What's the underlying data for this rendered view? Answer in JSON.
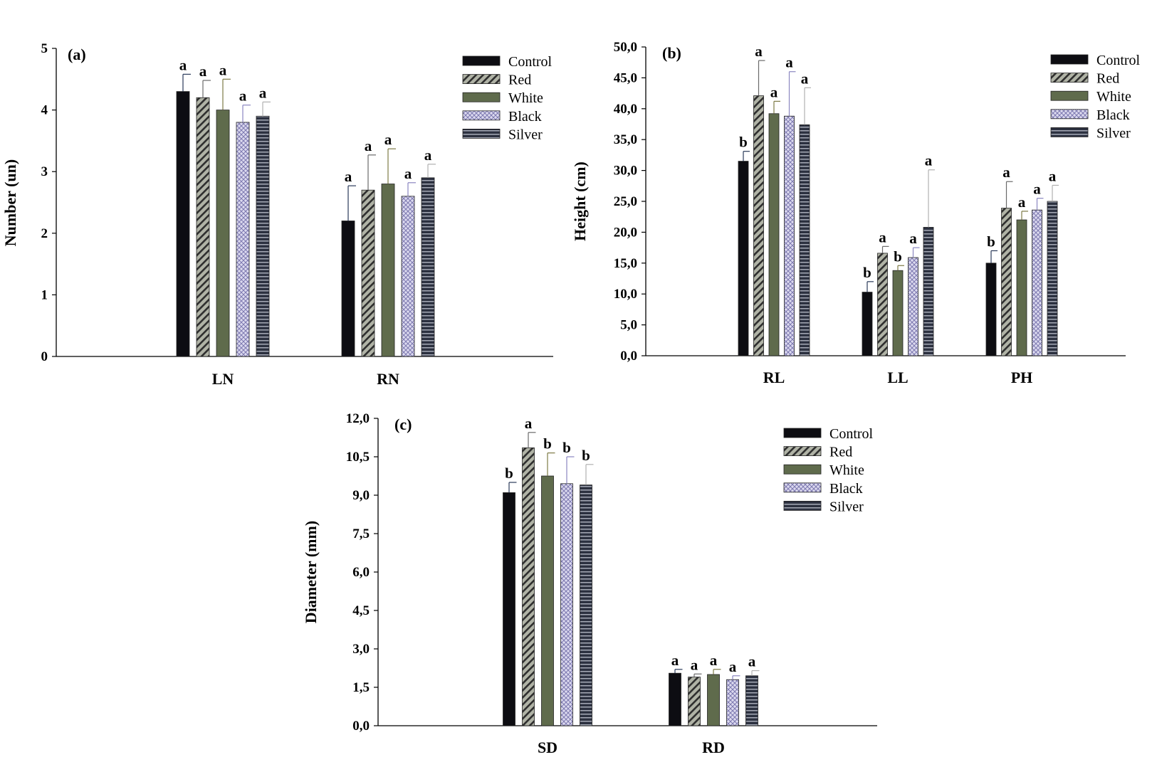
{
  "legend": {
    "entries": [
      "Control",
      "Red",
      "White",
      "Black",
      "Silver"
    ]
  },
  "series_styles": [
    {
      "name": "Control",
      "fill": "#0d0d12",
      "pattern": "solid"
    },
    {
      "name": "Red",
      "fill": "#b0b3a6",
      "pattern": "diagonal-hatch",
      "stroke": "#2e2e2e"
    },
    {
      "name": "White",
      "fill": "#5f6b4c",
      "pattern": "solid"
    },
    {
      "name": "Black",
      "fill": "#d8d5ec",
      "pattern": "crosshatch",
      "stroke": "#7c78b0"
    },
    {
      "name": "Silver",
      "fill": "#2c3140",
      "pattern": "horizontal-lines",
      "stroke": "#c4c8d4"
    }
  ],
  "chart_data": [
    {
      "type": "bar",
      "panel_label": "(a)",
      "ylabel": "Number (un)",
      "ylim": [
        0,
        5
      ],
      "yticks": [
        "0",
        "1",
        "2",
        "3",
        "4",
        "5"
      ],
      "categories": [
        "LN",
        "RN"
      ],
      "series": [
        {
          "name": "Control",
          "values": [
            4.3,
            2.2
          ],
          "errors": [
            0.28,
            0.57
          ],
          "letters": [
            "a",
            "a"
          ]
        },
        {
          "name": "Red",
          "values": [
            4.2,
            2.7
          ],
          "errors": [
            0.28,
            0.57
          ],
          "letters": [
            "a",
            "a"
          ]
        },
        {
          "name": "White",
          "values": [
            4.0,
            2.8
          ],
          "errors": [
            0.5,
            0.57
          ],
          "letters": [
            "a",
            "a"
          ]
        },
        {
          "name": "Black",
          "values": [
            3.8,
            2.6
          ],
          "errors": [
            0.28,
            0.22
          ],
          "letters": [
            "a",
            "a"
          ]
        },
        {
          "name": "Silver",
          "values": [
            3.9,
            2.9
          ],
          "errors": [
            0.23,
            0.22
          ],
          "letters": [
            "a",
            "a"
          ]
        }
      ],
      "legend_position": "top-right",
      "grid": false
    },
    {
      "type": "bar",
      "panel_label": "(b)",
      "ylabel": "Height (cm)",
      "ylim": [
        0,
        50
      ],
      "yticks": [
        "0,0",
        "5,0",
        "10,0",
        "15,0",
        "20,0",
        "25,0",
        "30,0",
        "35,0",
        "40,0",
        "45,0",
        "50,0"
      ],
      "categories": [
        "RL",
        "LL",
        "PH"
      ],
      "series": [
        {
          "name": "Control",
          "values": [
            31.5,
            10.3,
            15.0
          ],
          "errors": [
            1.6,
            1.7,
            2.0
          ],
          "letters": [
            "b",
            "b",
            "b"
          ]
        },
        {
          "name": "Red",
          "values": [
            42.1,
            16.6,
            23.9
          ],
          "errors": [
            5.7,
            1.1,
            4.3
          ],
          "letters": [
            "a",
            "a",
            "a"
          ]
        },
        {
          "name": "White",
          "values": [
            39.2,
            13.8,
            22.0
          ],
          "errors": [
            2.0,
            0.8,
            1.4
          ],
          "letters": [
            "a",
            "b",
            "a"
          ]
        },
        {
          "name": "Black",
          "values": [
            38.8,
            15.9,
            23.6
          ],
          "errors": [
            7.2,
            1.6,
            1.9
          ],
          "letters": [
            "a",
            "a",
            "a"
          ]
        },
        {
          "name": "Silver",
          "values": [
            37.4,
            20.8,
            25.0
          ],
          "errors": [
            6.0,
            9.3,
            2.6
          ],
          "letters": [
            "a",
            "a",
            "a"
          ]
        }
      ],
      "legend_position": "top-right",
      "grid": false
    },
    {
      "type": "bar",
      "panel_label": "(c)",
      "ylabel": "Diameter (mm)",
      "ylim": [
        0,
        12
      ],
      "yticks": [
        "0,0",
        "1,5",
        "3,0",
        "4,5",
        "6,0",
        "7,5",
        "9,0",
        "10,5",
        "12,0"
      ],
      "categories": [
        "SD",
        "RD"
      ],
      "series": [
        {
          "name": "Control",
          "values": [
            9.1,
            2.05
          ],
          "errors": [
            0.4,
            0.15
          ],
          "letters": [
            "b",
            "a"
          ]
        },
        {
          "name": "Red",
          "values": [
            10.85,
            1.9
          ],
          "errors": [
            0.6,
            0.12
          ],
          "letters": [
            "a",
            "a"
          ]
        },
        {
          "name": "White",
          "values": [
            9.75,
            2.0
          ],
          "errors": [
            0.9,
            0.2
          ],
          "letters": [
            "b",
            "a"
          ]
        },
        {
          "name": "Black",
          "values": [
            9.45,
            1.8
          ],
          "errors": [
            1.05,
            0.15
          ],
          "letters": [
            "b",
            "a"
          ]
        },
        {
          "name": "Silver",
          "values": [
            9.4,
            1.95
          ],
          "errors": [
            0.8,
            0.2
          ],
          "letters": [
            "b",
            "a"
          ]
        }
      ],
      "legend_position": "top-right",
      "grid": false
    }
  ]
}
